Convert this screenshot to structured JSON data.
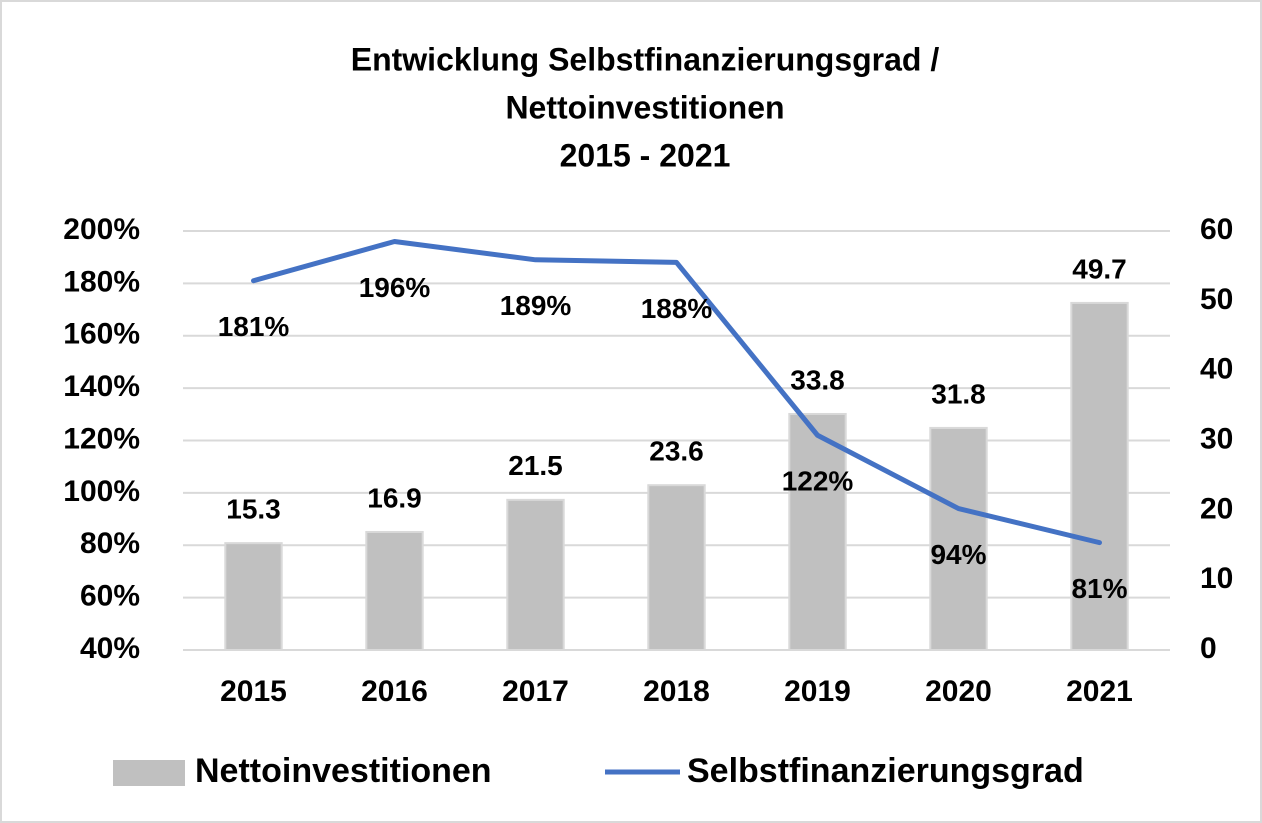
{
  "chart_data": {
    "type": "combo",
    "title": [
      "Entwicklung Selbstfinanzierungsgrad /",
      "Nettoinvestitionen",
      "2015 - 2021"
    ],
    "categories": [
      "2015",
      "2016",
      "2017",
      "2018",
      "2019",
      "2020",
      "2021"
    ],
    "series": [
      {
        "name": "Nettoinvestitionen",
        "type": "bar",
        "axis": "y2",
        "color": "#c0c0c0",
        "values": [
          15.3,
          16.9,
          21.5,
          23.6,
          33.8,
          31.8,
          49.7
        ]
      },
      {
        "name": "Selbstfinanzierungsgrad",
        "type": "line",
        "axis": "y",
        "color": "#4472c4",
        "values": [
          181,
          196,
          189,
          188,
          122,
          94,
          81
        ],
        "value_labels": [
          "181%",
          "196%",
          "189%",
          "188%",
          "122%",
          "94%",
          "81%"
        ]
      }
    ],
    "ylim": [
      40,
      200
    ],
    "yticks": [
      {
        "value": 40,
        "label": "40%"
      },
      {
        "value": 60,
        "label": "60%"
      },
      {
        "value": 80,
        "label": "80%"
      },
      {
        "value": 100,
        "label": "100%"
      },
      {
        "value": 120,
        "label": "120%"
      },
      {
        "value": 140,
        "label": "140%"
      },
      {
        "value": 160,
        "label": "160%"
      },
      {
        "value": 180,
        "label": "180%"
      },
      {
        "value": 200,
        "label": "200%"
      }
    ],
    "y2lim": [
      0,
      60
    ],
    "y2ticks": [
      0,
      10,
      20,
      30,
      40,
      50,
      60
    ],
    "grid": true,
    "legend": "bottom"
  }
}
